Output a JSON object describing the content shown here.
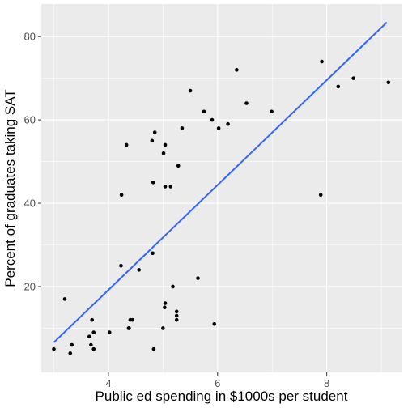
{
  "chart_data": {
    "type": "scatter",
    "xlabel": "Public ed spending in $1000s per student",
    "ylabel": "Percent of graduates taking SAT",
    "xlim": [
      2.77,
      9.37
    ],
    "ylim": [
      -0.6,
      87.8
    ],
    "x_ticks": [
      4,
      6,
      8
    ],
    "y_ticks": [
      20,
      40,
      60,
      80
    ],
    "grid": true,
    "points": [
      {
        "x": 3.0,
        "y": 5
      },
      {
        "x": 3.2,
        "y": 17
      },
      {
        "x": 3.3,
        "y": 4
      },
      {
        "x": 3.33,
        "y": 6
      },
      {
        "x": 3.65,
        "y": 8
      },
      {
        "x": 3.68,
        "y": 6
      },
      {
        "x": 3.7,
        "y": 12
      },
      {
        "x": 3.73,
        "y": 5
      },
      {
        "x": 3.73,
        "y": 9
      },
      {
        "x": 4.02,
        "y": 9
      },
      {
        "x": 4.23,
        "y": 25
      },
      {
        "x": 4.24,
        "y": 42
      },
      {
        "x": 4.33,
        "y": 54
      },
      {
        "x": 4.37,
        "y": 10
      },
      {
        "x": 4.38,
        "y": 10
      },
      {
        "x": 4.4,
        "y": 12
      },
      {
        "x": 4.44,
        "y": 12
      },
      {
        "x": 4.56,
        "y": 24
      },
      {
        "x": 4.8,
        "y": 55
      },
      {
        "x": 4.81,
        "y": 28
      },
      {
        "x": 4.82,
        "y": 45
      },
      {
        "x": 4.83,
        "y": 5
      },
      {
        "x": 4.85,
        "y": 57
      },
      {
        "x": 5.0,
        "y": 10
      },
      {
        "x": 5.01,
        "y": 52
      },
      {
        "x": 5.03,
        "y": 15
      },
      {
        "x": 5.04,
        "y": 16
      },
      {
        "x": 5.04,
        "y": 44
      },
      {
        "x": 5.04,
        "y": 54
      },
      {
        "x": 5.14,
        "y": 44
      },
      {
        "x": 5.18,
        "y": 20
      },
      {
        "x": 5.25,
        "y": 12
      },
      {
        "x": 5.25,
        "y": 13
      },
      {
        "x": 5.25,
        "y": 14
      },
      {
        "x": 5.28,
        "y": 49
      },
      {
        "x": 5.35,
        "y": 58
      },
      {
        "x": 5.5,
        "y": 67
      },
      {
        "x": 5.64,
        "y": 22
      },
      {
        "x": 5.75,
        "y": 62
      },
      {
        "x": 5.9,
        "y": 60
      },
      {
        "x": 5.94,
        "y": 11
      },
      {
        "x": 6.02,
        "y": 58
      },
      {
        "x": 6.19,
        "y": 59
      },
      {
        "x": 6.35,
        "y": 72
      },
      {
        "x": 6.53,
        "y": 64
      },
      {
        "x": 6.99,
        "y": 62
      },
      {
        "x": 7.89,
        "y": 42
      },
      {
        "x": 7.91,
        "y": 74
      },
      {
        "x": 8.21,
        "y": 68
      },
      {
        "x": 8.49,
        "y": 70
      },
      {
        "x": 9.13,
        "y": 69
      }
    ],
    "fit_line": {
      "color": "#3366ff",
      "start": {
        "x": 3.0,
        "y": 6.6
      },
      "end": {
        "x": 9.1,
        "y": 83.4
      }
    },
    "panel_color": "#ebebeb",
    "point_color": "#000000"
  }
}
